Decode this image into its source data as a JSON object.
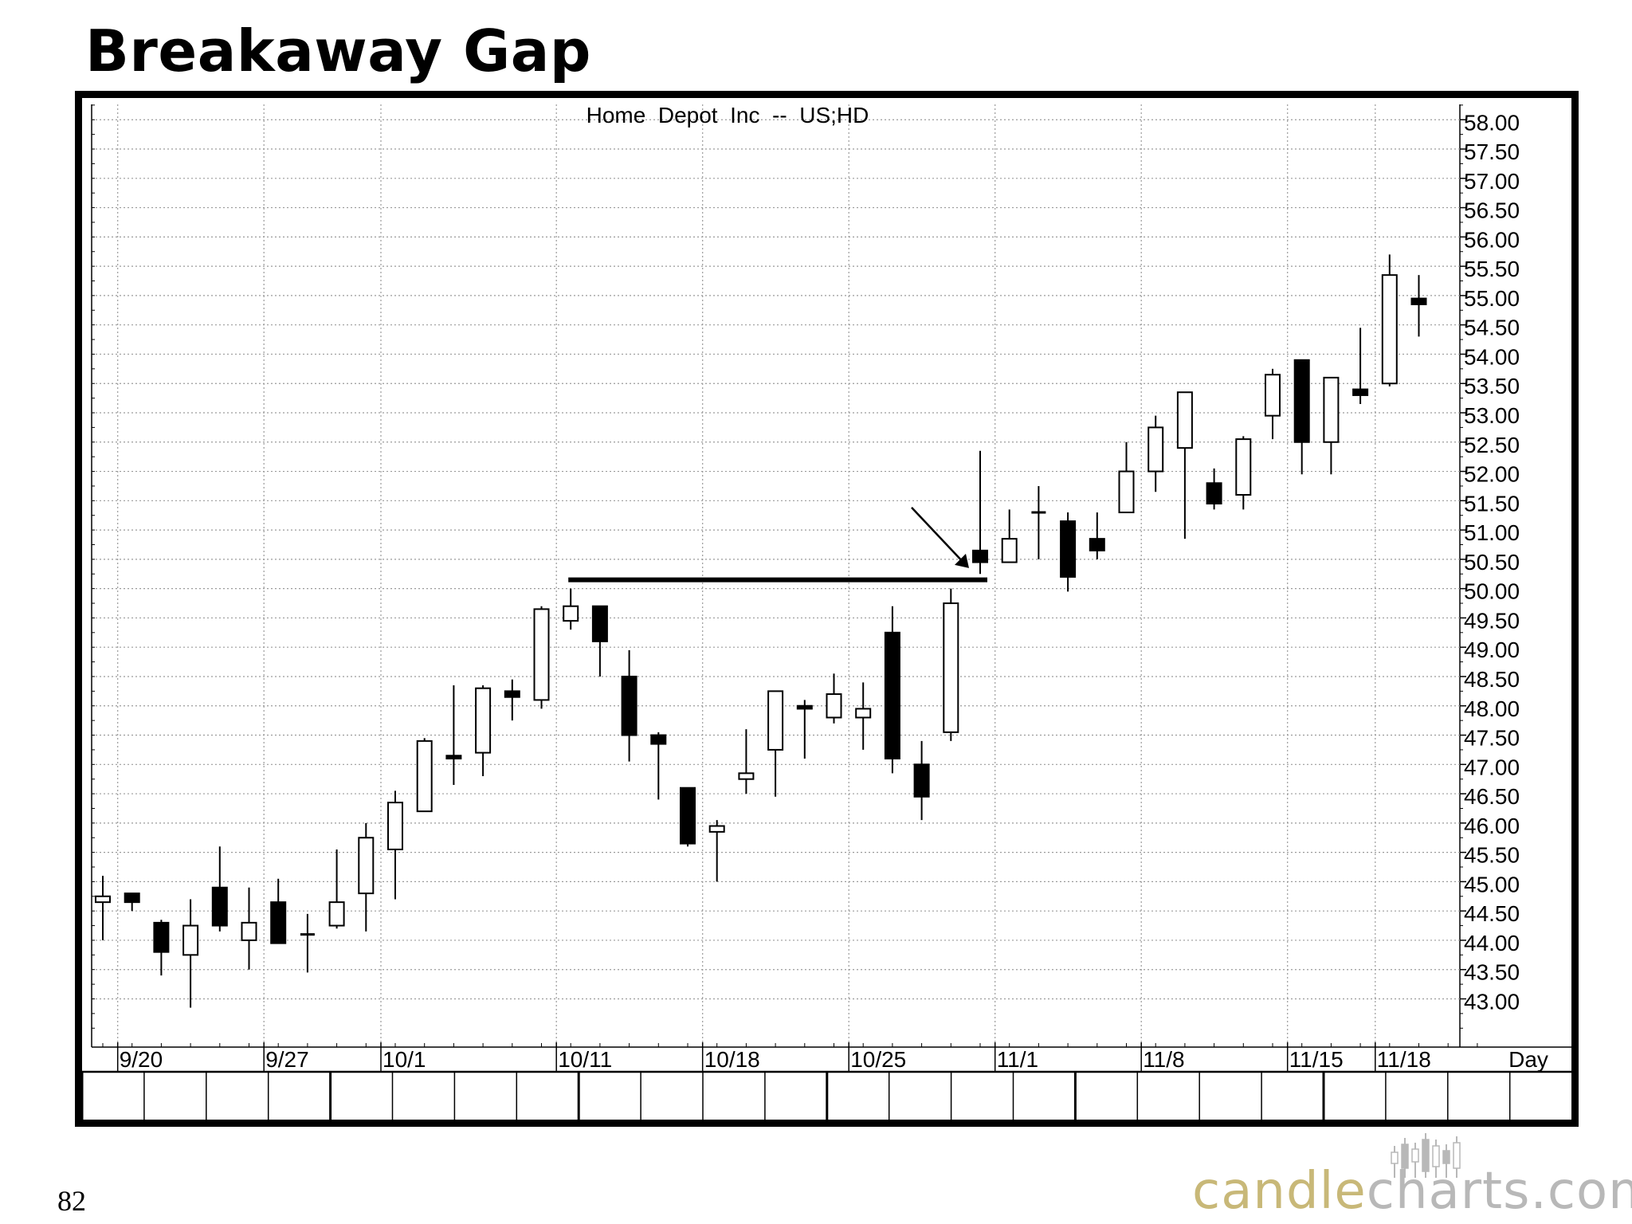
{
  "slide": {
    "title": "Breakaway Gap",
    "page_number": "82",
    "logo": {
      "part1": "candle",
      "part2": "charts.com"
    }
  },
  "colors": {
    "bearish": "#000000",
    "bullish": "#ffffff",
    "grid": "#9a9a9a",
    "logo_gold": "#c8b878",
    "logo_gray": "#b8b8b8"
  },
  "chart_data": {
    "type": "candlestick",
    "title": "Home  Depot  Inc  --  US;HD",
    "xlabel": "Day",
    "ylim": [
      42.2,
      58.4
    ],
    "y_ticks": [
      "58.00",
      "57.50",
      "57.00",
      "56.50",
      "56.00",
      "55.50",
      "55.00",
      "54.50",
      "54.00",
      "53.50",
      "53.00",
      "52.50",
      "52.00",
      "51.50",
      "51.00",
      "50.50",
      "50.00",
      "49.50",
      "49.00",
      "48.50",
      "48.00",
      "47.50",
      "47.00",
      "46.50",
      "46.00",
      "45.50",
      "45.00",
      "44.50",
      "44.00",
      "43.50",
      "43.00"
    ],
    "x_date_labels": [
      {
        "label": "9/20",
        "index": 1
      },
      {
        "label": "9/27",
        "index": 6
      },
      {
        "label": "10/1",
        "index": 10
      },
      {
        "label": "10/11",
        "index": 16
      },
      {
        "label": "10/18",
        "index": 21
      },
      {
        "label": "10/25",
        "index": 26
      },
      {
        "label": "11/1",
        "index": 31
      },
      {
        "label": "11/8",
        "index": 36
      },
      {
        "label": "11/15",
        "index": 41
      },
      {
        "label": "11/18",
        "index": 44
      }
    ],
    "candles": [
      {
        "o": 44.65,
        "h": 45.1,
        "l": 44.0,
        "c": 44.75
      },
      {
        "o": 44.8,
        "h": 44.8,
        "l": 44.5,
        "c": 44.65
      },
      {
        "o": 44.3,
        "h": 44.35,
        "l": 43.4,
        "c": 43.8
      },
      {
        "o": 43.75,
        "h": 44.7,
        "l": 42.85,
        "c": 44.25
      },
      {
        "o": 44.9,
        "h": 45.6,
        "l": 44.15,
        "c": 44.25
      },
      {
        "o": 44.0,
        "h": 44.9,
        "l": 43.5,
        "c": 44.3
      },
      {
        "o": 44.65,
        "h": 45.05,
        "l": 43.95,
        "c": 43.95
      },
      {
        "o": 44.1,
        "h": 44.45,
        "l": 43.45,
        "c": 44.1
      },
      {
        "o": 44.25,
        "h": 45.55,
        "l": 44.2,
        "c": 44.65
      },
      {
        "o": 44.8,
        "h": 46.0,
        "l": 44.15,
        "c": 45.75
      },
      {
        "o": 45.55,
        "h": 46.55,
        "l": 44.7,
        "c": 46.35
      },
      {
        "o": 46.2,
        "h": 47.45,
        "l": 46.2,
        "c": 47.4
      },
      {
        "o": 47.15,
        "h": 48.35,
        "l": 46.65,
        "c": 47.1
      },
      {
        "o": 47.2,
        "h": 48.35,
        "l": 46.8,
        "c": 48.3
      },
      {
        "o": 48.25,
        "h": 48.45,
        "l": 47.75,
        "c": 48.15
      },
      {
        "o": 48.1,
        "h": 49.7,
        "l": 47.95,
        "c": 49.65
      },
      {
        "o": 49.45,
        "h": 50.0,
        "l": 49.3,
        "c": 49.7
      },
      {
        "o": 49.7,
        "h": 49.7,
        "l": 48.5,
        "c": 49.1
      },
      {
        "o": 48.5,
        "h": 48.95,
        "l": 47.05,
        "c": 47.5
      },
      {
        "o": 47.5,
        "h": 47.55,
        "l": 46.4,
        "c": 47.35
      },
      {
        "o": 46.6,
        "h": 46.6,
        "l": 45.6,
        "c": 45.65
      },
      {
        "o": 45.85,
        "h": 46.05,
        "l": 45.0,
        "c": 45.95
      },
      {
        "o": 46.75,
        "h": 47.6,
        "l": 46.5,
        "c": 46.85
      },
      {
        "o": 47.25,
        "h": 48.25,
        "l": 46.45,
        "c": 48.25
      },
      {
        "o": 48.0,
        "h": 48.1,
        "l": 47.1,
        "c": 47.95
      },
      {
        "o": 47.8,
        "h": 48.55,
        "l": 47.7,
        "c": 48.2
      },
      {
        "o": 47.8,
        "h": 48.4,
        "l": 47.25,
        "c": 47.95
      },
      {
        "o": 49.25,
        "h": 49.7,
        "l": 46.85,
        "c": 47.1
      },
      {
        "o": 47.0,
        "h": 47.4,
        "l": 46.05,
        "c": 46.45
      },
      {
        "o": 47.55,
        "h": 50.0,
        "l": 47.4,
        "c": 49.75
      },
      {
        "o": 50.65,
        "h": 52.35,
        "l": 50.25,
        "c": 50.45
      },
      {
        "o": 50.45,
        "h": 51.35,
        "l": 50.45,
        "c": 50.85
      },
      {
        "o": 51.3,
        "h": 51.75,
        "l": 50.5,
        "c": 51.3
      },
      {
        "o": 51.15,
        "h": 51.3,
        "l": 49.95,
        "c": 50.2
      },
      {
        "o": 50.85,
        "h": 51.3,
        "l": 50.5,
        "c": 50.65
      },
      {
        "o": 51.3,
        "h": 52.5,
        "l": 51.3,
        "c": 52.0
      },
      {
        "o": 52.0,
        "h": 52.95,
        "l": 51.65,
        "c": 52.75
      },
      {
        "o": 52.4,
        "h": 53.35,
        "l": 50.85,
        "c": 53.35
      },
      {
        "o": 51.8,
        "h": 52.05,
        "l": 51.35,
        "c": 51.45
      },
      {
        "o": 51.6,
        "h": 52.6,
        "l": 51.35,
        "c": 52.55
      },
      {
        "o": 52.95,
        "h": 53.75,
        "l": 52.55,
        "c": 53.65
      },
      {
        "o": 53.9,
        "h": 53.9,
        "l": 51.95,
        "c": 52.5
      },
      {
        "o": 52.5,
        "h": 53.55,
        "l": 51.95,
        "c": 53.6
      },
      {
        "o": 53.4,
        "h": 54.45,
        "l": 53.15,
        "c": 53.3
      },
      {
        "o": 53.5,
        "h": 55.7,
        "l": 53.45,
        "c": 55.35
      },
      {
        "o": 54.95,
        "h": 55.35,
        "l": 54.3,
        "c": 54.85
      }
    ],
    "resistance_line": {
      "value": 50.15,
      "from_index": 16,
      "to_index": 30
    },
    "annotation": {
      "type": "arrow",
      "target_index": 30,
      "target_value": 50.35
    },
    "grid": true
  }
}
